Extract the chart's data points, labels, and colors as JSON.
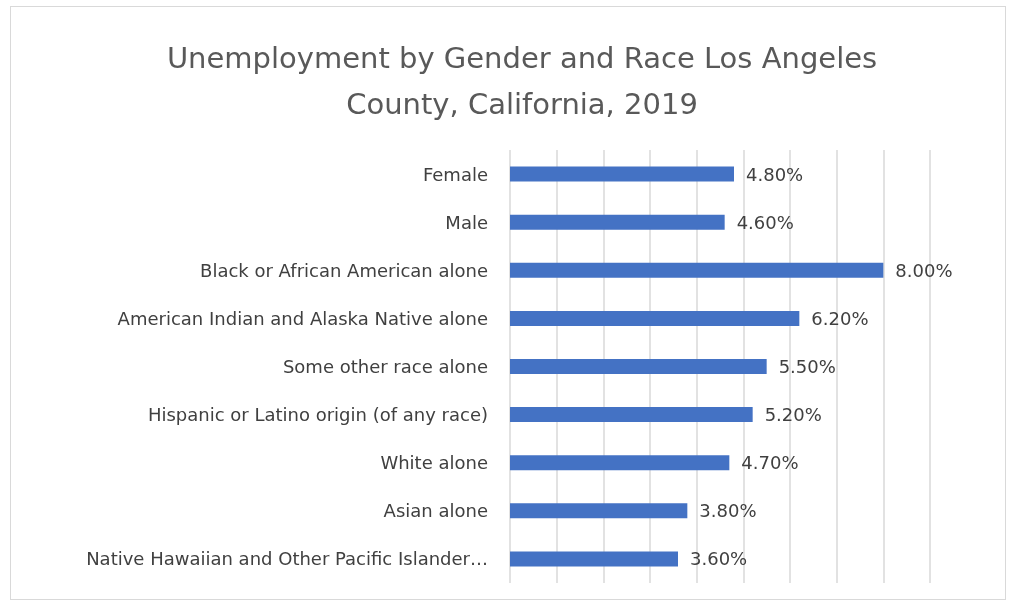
{
  "chart_data": {
    "type": "bar",
    "orientation": "horizontal",
    "title": "Unemployment by Gender and Race Los Angeles\nCounty, California, 2019",
    "categories": [
      "Female",
      "Male",
      "Black or African American alone",
      "American Indian and Alaska Native alone",
      "Some other race alone",
      "Hispanic or Latino origin (of any race)",
      "White alone",
      "Asian alone",
      "Native Hawaiian and Other Pacific Islander…"
    ],
    "values": [
      4.8,
      4.6,
      8.0,
      6.2,
      5.5,
      5.2,
      4.7,
      3.8,
      3.6
    ],
    "value_labels": [
      "4.80%",
      "4.60%",
      "8.00%",
      "6.20%",
      "5.50%",
      "5.20%",
      "4.70%",
      "3.80%",
      "3.60%"
    ],
    "color": "#4472c4",
    "xlim": [
      0,
      9
    ],
    "xticks": [
      {
        "value": 0,
        "label": null
      },
      {
        "value": 1,
        "label": null
      },
      {
        "value": 2,
        "label": null
      },
      {
        "value": 3,
        "label": null
      },
      {
        "value": 4,
        "label": null
      },
      {
        "value": 5,
        "label": null
      },
      {
        "value": 6,
        "label": null
      },
      {
        "value": 7,
        "label": null
      },
      {
        "value": 8,
        "label": null
      },
      {
        "value": 9,
        "label": null
      }
    ],
    "grid": "x",
    "tick_labels": "y"
  }
}
